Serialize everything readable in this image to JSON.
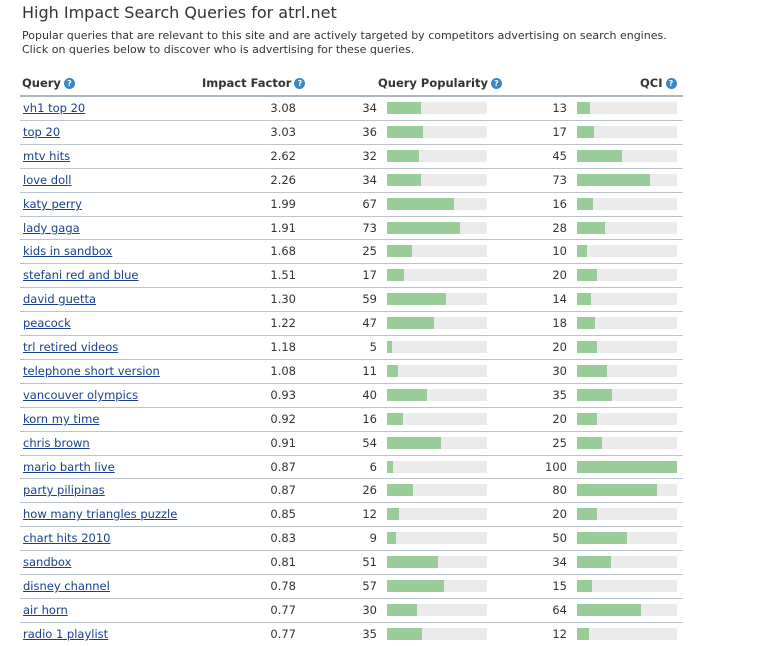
{
  "page": {
    "title": "High Impact Search Queries for atrl.net",
    "description": [
      "Popular queries that are relevant to this site and are actively targeted by competitors advertising on search engines.",
      "Click on queries below to discover who is advertising for these queries."
    ]
  },
  "table": {
    "headers": {
      "query": "Query",
      "impact": "Impact Factor",
      "popularity": "Query Popularity",
      "qci": "QCI",
      "help_icon": "?"
    },
    "rows": [
      {
        "query": "vh1 top 20",
        "impact": "3.08",
        "popularity": 34,
        "qci": 13
      },
      {
        "query": "top 20",
        "impact": "3.03",
        "popularity": 36,
        "qci": 17
      },
      {
        "query": "mtv hits",
        "impact": "2.62",
        "popularity": 32,
        "qci": 45
      },
      {
        "query": "love doll",
        "impact": "2.26",
        "popularity": 34,
        "qci": 73
      },
      {
        "query": "katy perry",
        "impact": "1.99",
        "popularity": 67,
        "qci": 16
      },
      {
        "query": "lady gaga",
        "impact": "1.91",
        "popularity": 73,
        "qci": 28
      },
      {
        "query": "kids in sandbox",
        "impact": "1.68",
        "popularity": 25,
        "qci": 10
      },
      {
        "query": "stefani red and blue",
        "impact": "1.51",
        "popularity": 17,
        "qci": 20
      },
      {
        "query": "david guetta",
        "impact": "1.30",
        "popularity": 59,
        "qci": 14
      },
      {
        "query": "peacock",
        "impact": "1.22",
        "popularity": 47,
        "qci": 18
      },
      {
        "query": "trl retired videos",
        "impact": "1.18",
        "popularity": 5,
        "qci": 20
      },
      {
        "query": "telephone short version",
        "impact": "1.08",
        "popularity": 11,
        "qci": 30
      },
      {
        "query": "vancouver olympics",
        "impact": "0.93",
        "popularity": 40,
        "qci": 35
      },
      {
        "query": "korn my time",
        "impact": "0.92",
        "popularity": 16,
        "qci": 20
      },
      {
        "query": "chris brown",
        "impact": "0.91",
        "popularity": 54,
        "qci": 25
      },
      {
        "query": "mario barth live",
        "impact": "0.87",
        "popularity": 6,
        "qci": 100
      },
      {
        "query": "party pilipinas",
        "impact": "0.87",
        "popularity": 26,
        "qci": 80
      },
      {
        "query": "how many triangles puzzle",
        "impact": "0.85",
        "popularity": 12,
        "qci": 20
      },
      {
        "query": "chart hits 2010",
        "impact": "0.83",
        "popularity": 9,
        "qci": 50
      },
      {
        "query": "sandbox",
        "impact": "0.81",
        "popularity": 51,
        "qci": 34
      },
      {
        "query": "disney channel",
        "impact": "0.78",
        "popularity": 57,
        "qci": 15
      },
      {
        "query": "air horn",
        "impact": "0.77",
        "popularity": 30,
        "qci": 64
      },
      {
        "query": "radio 1 playlist",
        "impact": "0.77",
        "popularity": 35,
        "qci": 12
      }
    ]
  },
  "colors": {
    "bar_fill": "#99cc99",
    "bar_track": "#ebebeb",
    "link": "#1a3f8f",
    "help_icon": "#3a86c8"
  }
}
